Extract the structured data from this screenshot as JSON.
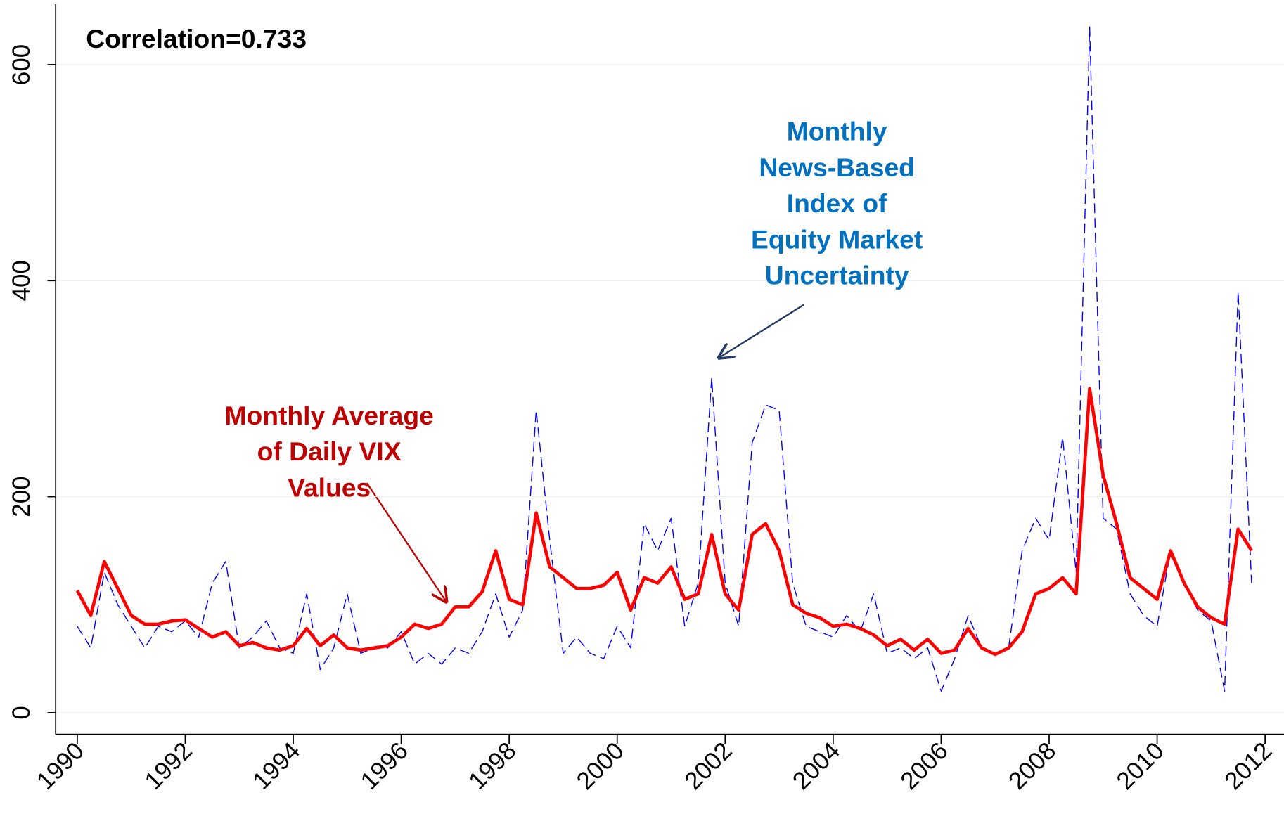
{
  "chart_data": {
    "type": "line",
    "x": [
      1990.0,
      1990.25,
      1990.5,
      1990.75,
      1991.0,
      1991.25,
      1991.5,
      1991.75,
      1992.0,
      1992.25,
      1992.5,
      1992.75,
      1993.0,
      1993.25,
      1993.5,
      1993.75,
      1994.0,
      1994.25,
      1994.5,
      1994.75,
      1995.0,
      1995.25,
      1995.5,
      1995.75,
      1996.0,
      1996.25,
      1996.5,
      1996.75,
      1997.0,
      1997.25,
      1997.5,
      1997.75,
      1998.0,
      1998.25,
      1998.5,
      1998.75,
      1999.0,
      1999.25,
      1999.5,
      1999.75,
      2000.0,
      2000.25,
      2000.5,
      2000.75,
      2001.0,
      2001.25,
      2001.5,
      2001.75,
      2002.0,
      2002.25,
      2002.5,
      2002.75,
      2003.0,
      2003.25,
      2003.5,
      2003.75,
      2004.0,
      2004.25,
      2004.5,
      2004.75,
      2005.0,
      2005.25,
      2005.5,
      2005.75,
      2006.0,
      2006.25,
      2006.5,
      2006.75,
      2007.0,
      2007.25,
      2007.5,
      2007.75,
      2008.0,
      2008.25,
      2008.5,
      2008.75,
      2009.0,
      2009.25,
      2009.5,
      2009.75,
      2010.0,
      2010.25,
      2010.5,
      2010.75,
      2011.0,
      2011.25,
      2011.5,
      2011.75
    ],
    "series": [
      {
        "name": "Monthly Average of Daily VIX Values",
        "color": "#ff0000",
        "style": "solid",
        "values": [
          113,
          90,
          140,
          115,
          90,
          82,
          82,
          85,
          86,
          78,
          70,
          75,
          62,
          65,
          60,
          58,
          62,
          78,
          62,
          72,
          60,
          58,
          60,
          62,
          70,
          82,
          78,
          82,
          98,
          98,
          112,
          150,
          105,
          100,
          185,
          135,
          125,
          115,
          115,
          118,
          130,
          95,
          125,
          120,
          135,
          105,
          110,
          165,
          110,
          95,
          165,
          175,
          150,
          100,
          92,
          88,
          80,
          82,
          78,
          72,
          62,
          68,
          58,
          68,
          55,
          58,
          78,
          60,
          54,
          60,
          75,
          110,
          115,
          125,
          110,
          300,
          220,
          175,
          125,
          115,
          105,
          150,
          120,
          98,
          88,
          82,
          170,
          150
        ]
      },
      {
        "name": "Monthly News-Based Index of Equity Market Uncertainty",
        "color": "#0000ff",
        "style": "dashed",
        "values": [
          80,
          60,
          130,
          100,
          80,
          60,
          80,
          75,
          85,
          70,
          120,
          140,
          60,
          70,
          85,
          60,
          55,
          110,
          40,
          60,
          110,
          55,
          60,
          60,
          75,
          45,
          55,
          45,
          60,
          55,
          75,
          110,
          70,
          95,
          280,
          160,
          55,
          70,
          55,
          50,
          80,
          60,
          175,
          150,
          180,
          80,
          120,
          310,
          120,
          80,
          250,
          285,
          280,
          120,
          80,
          75,
          70,
          90,
          75,
          110,
          55,
          60,
          50,
          60,
          20,
          50,
          90,
          60,
          55,
          60,
          150,
          180,
          160,
          255,
          130,
          635,
          180,
          170,
          110,
          90,
          80,
          150,
          120,
          95,
          85,
          20,
          390,
          120
        ]
      }
    ],
    "xlim": [
      1989.6,
      2012.35
    ],
    "ylim": [
      -20,
      656
    ],
    "xticks": [
      1990,
      1992,
      1994,
      1996,
      1998,
      2000,
      2002,
      2004,
      2006,
      2008,
      2010,
      2012
    ],
    "yticks": [
      0,
      200,
      400,
      600
    ],
    "grid": true,
    "annotations": [
      {
        "lines": [
          "Correlation=0.733"
        ],
        "color": "#000000"
      },
      {
        "lines": [
          "Monthly",
          "News-Based",
          "Index of",
          "Equity Market",
          "Uncertainty"
        ],
        "color": "#0070c0"
      },
      {
        "lines": [
          "Monthly Average",
          "of Daily VIX",
          "Values"
        ],
        "color": "#c00000"
      }
    ]
  }
}
